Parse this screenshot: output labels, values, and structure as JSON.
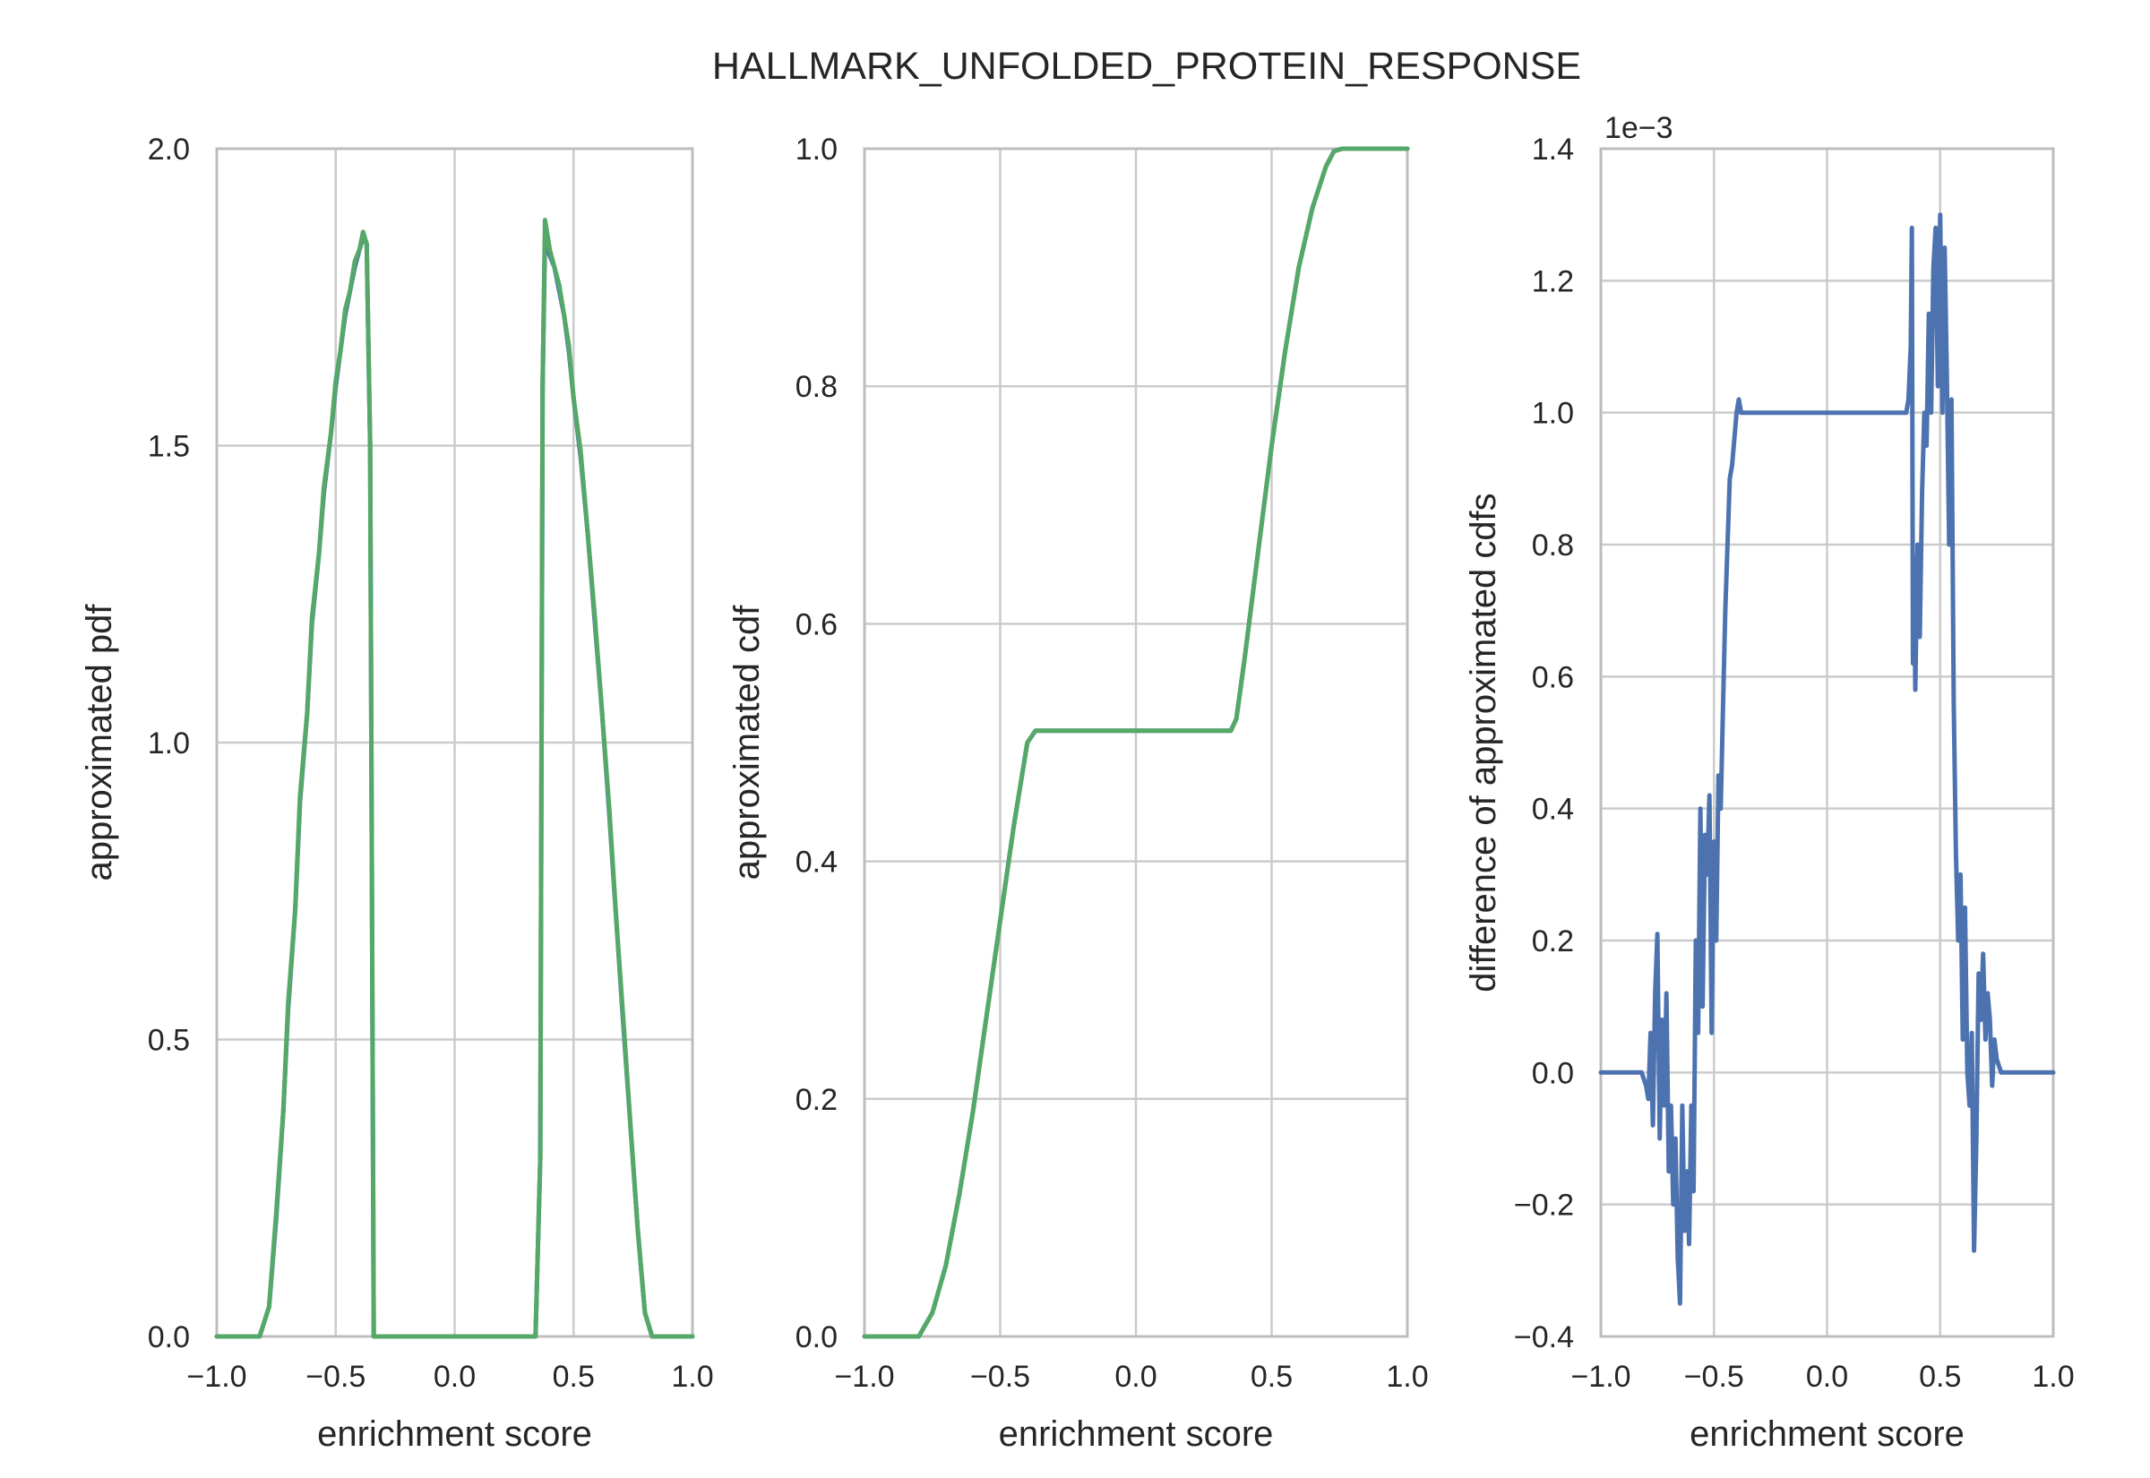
{
  "figure": {
    "title": "HALLMARK_UNFOLDED_PROTEIN_RESPONSE"
  },
  "colors": {
    "blue": "#4c72b0",
    "green": "#55a868",
    "grid": "#cbcbcb"
  },
  "chart_data": [
    {
      "type": "line",
      "xlabel": "enrichment score",
      "ylabel": "approximated pdf",
      "xlim": [
        -1.0,
        1.0
      ],
      "ylim": [
        0.0,
        2.0
      ],
      "xticks": [
        "−1.0",
        "−0.5",
        "0.0",
        "0.5",
        "1.0"
      ],
      "yticks": [
        "0.0",
        "0.5",
        "1.0",
        "1.5",
        "2.0"
      ],
      "grid": true,
      "series": [
        {
          "color": "#4c72b0",
          "x": [
            -1.0,
            -0.82,
            -0.78,
            -0.75,
            -0.72,
            -0.7,
            -0.67,
            -0.65,
            -0.62,
            -0.6,
            -0.57,
            -0.55,
            -0.52,
            -0.5,
            -0.48,
            -0.46,
            -0.44,
            -0.42,
            -0.4,
            -0.385,
            -0.37,
            -0.355,
            -0.34,
            -0.3,
            0.0,
            0.3,
            0.34,
            0.36,
            0.37,
            0.38,
            0.4,
            0.42,
            0.44,
            0.46,
            0.48,
            0.5,
            0.53,
            0.56,
            0.59,
            0.62,
            0.65,
            0.68,
            0.71,
            0.74,
            0.77,
            0.8,
            0.83,
            1.0
          ],
          "y": [
            0.0,
            0.0,
            0.05,
            0.2,
            0.38,
            0.55,
            0.72,
            0.9,
            1.05,
            1.2,
            1.32,
            1.42,
            1.52,
            1.6,
            1.66,
            1.72,
            1.76,
            1.8,
            1.83,
            1.85,
            1.84,
            1.5,
            0.0,
            0.0,
            0.0,
            0.0,
            0.0,
            0.3,
            1.6,
            1.85,
            1.82,
            1.8,
            1.76,
            1.72,
            1.66,
            1.58,
            1.48,
            1.35,
            1.2,
            1.05,
            0.88,
            0.7,
            0.52,
            0.35,
            0.18,
            0.04,
            0.0,
            0.0
          ]
        },
        {
          "color": "#55a868",
          "x": [
            -1.0,
            -0.82,
            -0.78,
            -0.75,
            -0.72,
            -0.7,
            -0.67,
            -0.65,
            -0.62,
            -0.6,
            -0.57,
            -0.55,
            -0.52,
            -0.5,
            -0.48,
            -0.46,
            -0.44,
            -0.42,
            -0.4,
            -0.385,
            -0.37,
            -0.355,
            -0.34,
            -0.3,
            0.0,
            0.3,
            0.34,
            0.36,
            0.37,
            0.38,
            0.4,
            0.42,
            0.44,
            0.46,
            0.48,
            0.5,
            0.53,
            0.56,
            0.59,
            0.62,
            0.65,
            0.68,
            0.71,
            0.74,
            0.77,
            0.8,
            0.83,
            1.0
          ],
          "y": [
            0.0,
            0.0,
            0.05,
            0.21,
            0.38,
            0.56,
            0.72,
            0.91,
            1.05,
            1.21,
            1.32,
            1.43,
            1.52,
            1.61,
            1.66,
            1.73,
            1.76,
            1.81,
            1.83,
            1.86,
            1.84,
            1.5,
            0.0,
            0.0,
            0.0,
            0.0,
            0.0,
            0.3,
            1.6,
            1.88,
            1.83,
            1.8,
            1.77,
            1.72,
            1.67,
            1.58,
            1.49,
            1.35,
            1.21,
            1.05,
            0.89,
            0.7,
            0.53,
            0.35,
            0.18,
            0.04,
            0.0,
            0.0
          ]
        }
      ]
    },
    {
      "type": "line",
      "xlabel": "enrichment score",
      "ylabel": "approximated cdf",
      "xlim": [
        -1.0,
        1.0
      ],
      "ylim": [
        0.0,
        1.0
      ],
      "xticks": [
        "−1.0",
        "−0.5",
        "0.0",
        "0.5",
        "1.0"
      ],
      "yticks": [
        "0.0",
        "0.2",
        "0.4",
        "0.6",
        "0.8",
        "1.0"
      ],
      "grid": true,
      "series": [
        {
          "color": "#4c72b0",
          "x": [
            -1.0,
            -0.8,
            -0.75,
            -0.7,
            -0.65,
            -0.6,
            -0.55,
            -0.5,
            -0.45,
            -0.4,
            -0.37,
            -0.35,
            0.0,
            0.35,
            0.37,
            0.4,
            0.45,
            0.5,
            0.55,
            0.6,
            0.65,
            0.7,
            0.73,
            0.76,
            0.8,
            1.0
          ],
          "y": [
            0.0,
            0.0,
            0.02,
            0.06,
            0.12,
            0.19,
            0.27,
            0.35,
            0.43,
            0.5,
            0.51,
            0.51,
            0.51,
            0.51,
            0.52,
            0.57,
            0.66,
            0.75,
            0.83,
            0.9,
            0.95,
            0.985,
            0.998,
            1.0,
            1.0,
            1.0
          ]
        },
        {
          "color": "#55a868",
          "x": [
            -1.0,
            -0.8,
            -0.75,
            -0.7,
            -0.65,
            -0.6,
            -0.55,
            -0.5,
            -0.45,
            -0.4,
            -0.37,
            -0.35,
            0.0,
            0.35,
            0.37,
            0.4,
            0.45,
            0.5,
            0.55,
            0.6,
            0.65,
            0.7,
            0.73,
            0.76,
            0.8,
            1.0
          ],
          "y": [
            0.0,
            0.0,
            0.02,
            0.06,
            0.12,
            0.19,
            0.27,
            0.35,
            0.43,
            0.5,
            0.51,
            0.51,
            0.51,
            0.51,
            0.52,
            0.57,
            0.66,
            0.75,
            0.83,
            0.9,
            0.95,
            0.985,
            0.998,
            1.0,
            1.0,
            1.0
          ]
        }
      ]
    },
    {
      "type": "line",
      "xlabel": "enrichment score",
      "ylabel": "difference of approximated cdfs",
      "offset_label": "1e−3",
      "xlim": [
        -1.0,
        1.0
      ],
      "ylim": [
        -0.4,
        1.4
      ],
      "xticks": [
        "−1.0",
        "−0.5",
        "0.0",
        "0.5",
        "1.0"
      ],
      "yticks": [
        "−0.4",
        "−0.2",
        "0.0",
        "0.2",
        "0.4",
        "0.6",
        "0.8",
        "1.0",
        "1.2",
        "1.4"
      ],
      "grid": true,
      "series": [
        {
          "color": "#4c72b0",
          "x": [
            -1.0,
            -0.82,
            -0.8,
            -0.79,
            -0.78,
            -0.77,
            -0.76,
            -0.75,
            -0.74,
            -0.73,
            -0.72,
            -0.71,
            -0.7,
            -0.69,
            -0.68,
            -0.67,
            -0.66,
            -0.65,
            -0.64,
            -0.63,
            -0.62,
            -0.61,
            -0.6,
            -0.59,
            -0.58,
            -0.57,
            -0.56,
            -0.55,
            -0.54,
            -0.53,
            -0.52,
            -0.51,
            -0.5,
            -0.49,
            -0.48,
            -0.47,
            -0.46,
            -0.45,
            -0.44,
            -0.43,
            -0.42,
            -0.41,
            -0.4,
            -0.39,
            -0.38,
            -0.37,
            -0.36,
            -0.35,
            -0.34,
            -0.32,
            0.0,
            0.34,
            0.35,
            0.36,
            0.37,
            0.375,
            0.38,
            0.385,
            0.39,
            0.4,
            0.41,
            0.42,
            0.43,
            0.44,
            0.45,
            0.46,
            0.47,
            0.48,
            0.49,
            0.5,
            0.51,
            0.52,
            0.53,
            0.54,
            0.55,
            0.56,
            0.57,
            0.58,
            0.59,
            0.6,
            0.61,
            0.62,
            0.63,
            0.64,
            0.65,
            0.66,
            0.67,
            0.68,
            0.69,
            0.7,
            0.71,
            0.72,
            0.73,
            0.74,
            0.75,
            0.76,
            0.77,
            0.78,
            0.8,
            0.82,
            1.0
          ],
          "y": [
            0.0,
            0.0,
            -0.02,
            -0.04,
            0.06,
            -0.08,
            0.12,
            0.21,
            -0.1,
            0.08,
            -0.05,
            0.12,
            -0.15,
            -0.05,
            -0.2,
            -0.1,
            -0.28,
            -0.35,
            -0.05,
            -0.24,
            -0.15,
            -0.26,
            -0.05,
            -0.18,
            0.2,
            0.06,
            0.4,
            0.1,
            0.36,
            0.3,
            0.42,
            0.06,
            0.35,
            0.2,
            0.45,
            0.4,
            0.55,
            0.7,
            0.8,
            0.9,
            0.92,
            0.96,
            1.0,
            1.02,
            1.0,
            1.0,
            1.0,
            1.0,
            1.0,
            1.0,
            1.0,
            1.0,
            1.0,
            1.02,
            1.1,
            1.28,
            0.62,
            0.78,
            0.58,
            0.8,
            0.66,
            0.88,
            1.0,
            0.95,
            1.15,
            1.0,
            1.22,
            1.28,
            1.04,
            1.3,
            1.0,
            1.25,
            1.05,
            0.8,
            1.02,
            0.56,
            0.33,
            0.2,
            0.3,
            0.05,
            0.25,
            0.0,
            -0.05,
            0.06,
            -0.27,
            -0.1,
            0.15,
            0.08,
            0.18,
            0.05,
            0.12,
            0.08,
            -0.02,
            0.05,
            0.02,
            0.01,
            0.0,
            0.0,
            0.0,
            0.0,
            0.0
          ]
        }
      ]
    }
  ]
}
